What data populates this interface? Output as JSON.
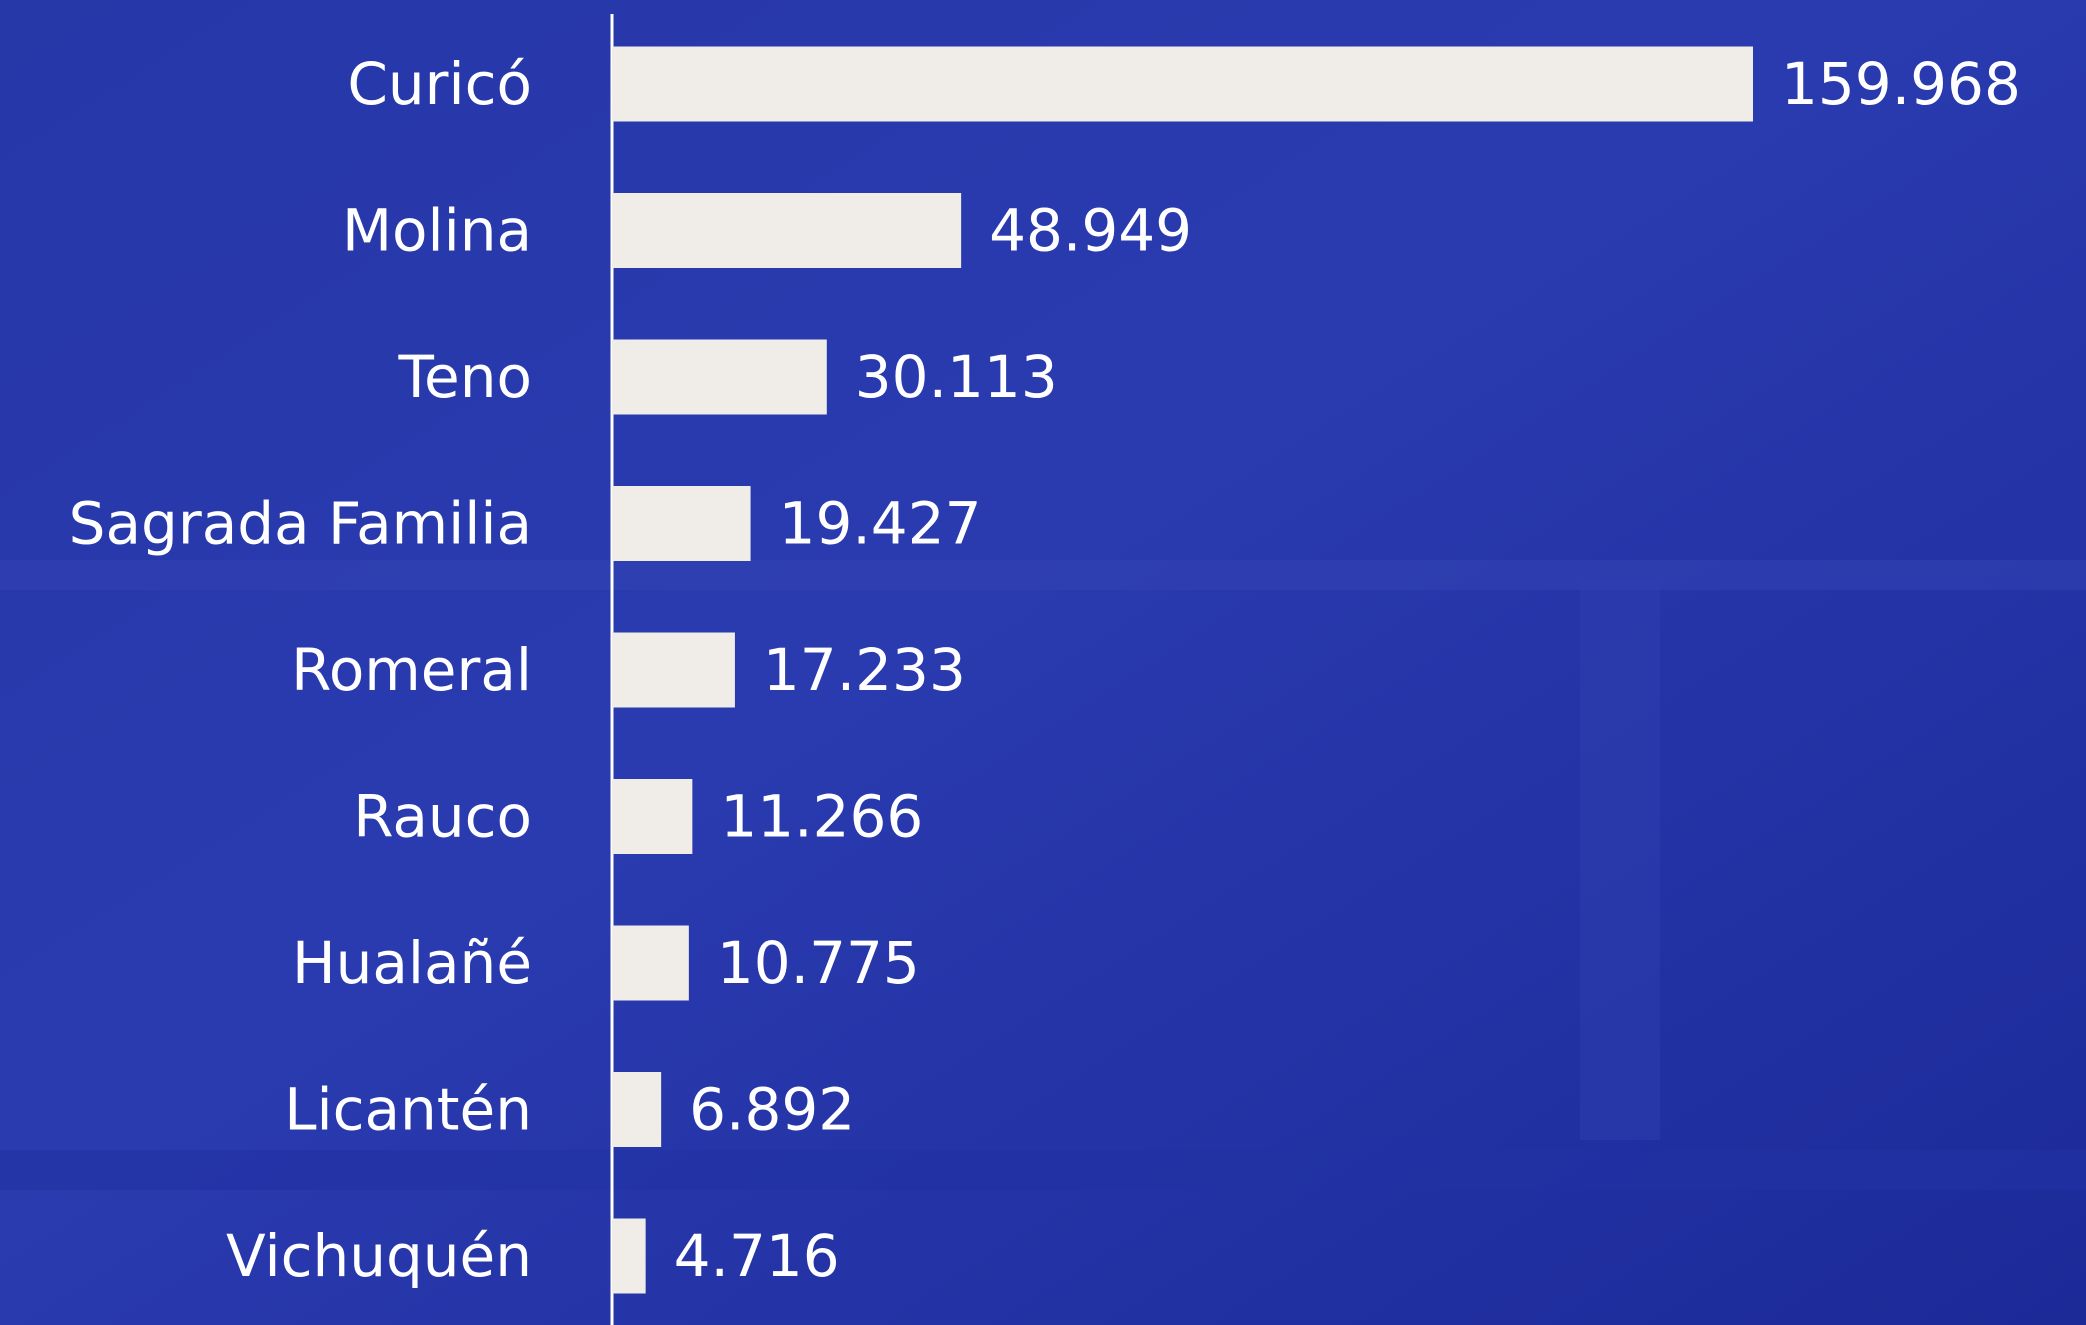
{
  "chart_data": {
    "type": "bar",
    "orientation": "horizontal",
    "categories": [
      "Curicó",
      "Molina",
      "Teno",
      "Sagrada Familia",
      "Romeral",
      "Rauco",
      "Hualañé",
      "Licantén",
      "Vichuquén"
    ],
    "values": [
      159968,
      48949,
      30113,
      19427,
      17233,
      11266,
      10775,
      6892,
      4716
    ],
    "value_labels": [
      "159.968",
      "48.949",
      "30.113",
      "19.427",
      "17.233",
      "11.266",
      "10.775",
      "6.892",
      "4.716"
    ],
    "color": "#f0ece8"
  }
}
